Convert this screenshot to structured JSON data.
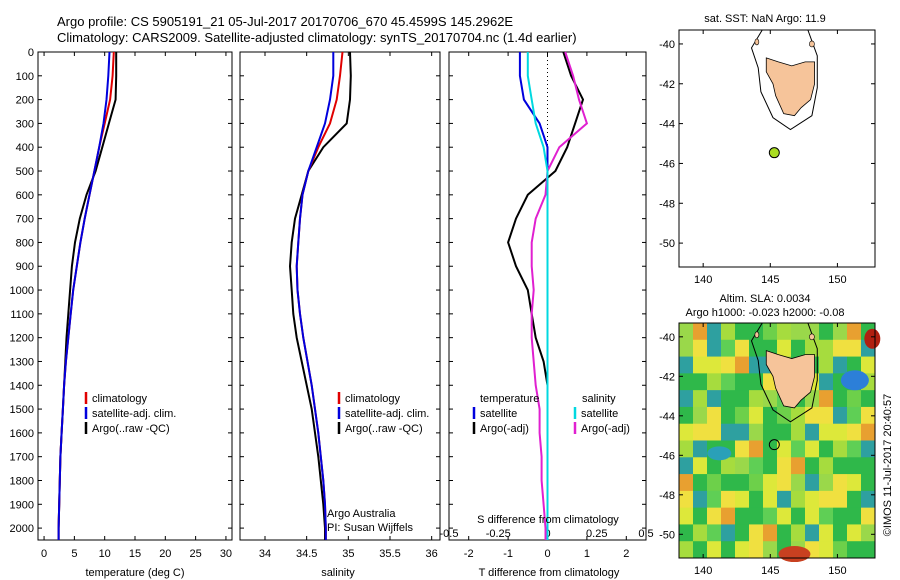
{
  "header": {
    "line1": "Argo profile: CS 5905191_21 05-Jul-2017 20170706_670 45.4599S 145.2962E",
    "line2": "Climatology: CARS2009. Satellite-adjusted climatology: synTS_20170704.nc (1.4d earlier)"
  },
  "colors": {
    "climatology": "#e00000",
    "satellite": "#0000dd",
    "argo": "#000000",
    "sat_cyan": "#00d8e0",
    "argo_magenta": "#e020d0",
    "land": "#f6c49a",
    "buoy": "#aadd22"
  },
  "depth_ticks": [
    0,
    100,
    200,
    300,
    400,
    500,
    600,
    700,
    800,
    900,
    1000,
    1100,
    1200,
    1300,
    1400,
    1500,
    1600,
    1700,
    1800,
    1900,
    2000
  ],
  "panels": {
    "temperature": {
      "xlabel": "temperature (deg C)",
      "xlim": [
        -1,
        31
      ],
      "xticks": [
        0,
        5,
        10,
        15,
        20,
        25,
        30
      ],
      "legend": [
        "climatology",
        "satellite-adj. clim.",
        "Argo(..raw -QC)"
      ]
    },
    "salinity": {
      "xlabel": "salinity",
      "xlim": [
        33.7,
        36.1
      ],
      "xticks": [
        34,
        34.5,
        35,
        35.5,
        36
      ],
      "legend": [
        "climatology",
        "satellite-adj. clim.",
        "Argo(..raw -QC)"
      ],
      "annotation1": "Argo Australia",
      "annotation2": "PI: Susan Wijffels"
    },
    "difference": {
      "xlabel": "T difference from climatology",
      "top_label": "S difference from climatology",
      "xlim": [
        -2.5,
        2.5
      ],
      "xticks": [
        -2,
        -1,
        0,
        1,
        2
      ],
      "s_ticks": [
        "-0.5",
        "-0.25",
        "0",
        "0.25",
        "0.5"
      ],
      "legend_temp_title": "temperature",
      "legend_sal_title": "salinity",
      "legend_temp": [
        "satellite",
        "Argo(-adj)"
      ],
      "legend_sal": [
        "satellite",
        "Argo(-adj)"
      ]
    }
  },
  "maps": {
    "top_title": "sat. SST: NaN Argo: 11.9",
    "bottom_title1": "Altim. SLA: 0.0034",
    "bottom_title2": "Argo h1000: -0.023 h2000: -0.08",
    "lat_ticks": [
      -40,
      -42,
      -44,
      -46,
      -48,
      -50
    ],
    "lon_ticks": [
      140,
      145,
      150
    ],
    "buoy": {
      "lon": 145.3,
      "lat": -45.46
    },
    "copyright": "©IMOS 11-Jul-2017 20:40:57"
  },
  "chart_data": [
    {
      "type": "line",
      "title": "",
      "xlabel": "temperature (deg C)",
      "ylabel": "",
      "xlim": [
        -1,
        31
      ],
      "ylim": [
        2050,
        0
      ],
      "y_depth": [
        0,
        100,
        200,
        300,
        400,
        500,
        600,
        700,
        800,
        900,
        1000,
        1100,
        1200,
        1300,
        1400,
        1500,
        1600,
        1700,
        1800,
        1900,
        2000,
        2050
      ],
      "series": [
        {
          "name": "climatology",
          "values": [
            11.5,
            11.3,
            10.9,
            10.0,
            9.1,
            8.3,
            7.5,
            6.7,
            6.0,
            5.4,
            4.8,
            4.4,
            4.0,
            3.6,
            3.3,
            3.1,
            2.9,
            2.7,
            2.6,
            2.5,
            2.4,
            2.4
          ]
        },
        {
          "name": "satellite-adj. clim.",
          "values": [
            10.8,
            10.6,
            10.3,
            9.8,
            9.1,
            8.3,
            7.5,
            6.7,
            6.0,
            5.4,
            4.8,
            4.4,
            4.0,
            3.6,
            3.3,
            3.1,
            2.9,
            2.7,
            2.6,
            2.5,
            2.4,
            2.4
          ]
        },
        {
          "name": "Argo(..raw -QC)",
          "values": [
            11.9,
            11.9,
            11.8,
            10.7,
            9.6,
            8.5,
            7.0,
            5.9,
            5.1,
            4.6,
            4.3,
            4.0,
            3.7,
            3.5,
            3.3,
            3.1,
            2.9,
            2.7,
            2.6,
            2.5,
            2.4,
            2.4
          ]
        }
      ]
    },
    {
      "type": "line",
      "title": "",
      "xlabel": "salinity",
      "ylabel": "",
      "xlim": [
        33.7,
        36.1
      ],
      "ylim": [
        2050,
        0
      ],
      "y_depth": [
        0,
        100,
        200,
        300,
        400,
        500,
        600,
        700,
        800,
        900,
        1000,
        1100,
        1200,
        1300,
        1400,
        1500,
        1600,
        1700,
        1800,
        1900,
        2000,
        2050
      ],
      "series": [
        {
          "name": "climatology",
          "values": [
            34.93,
            34.9,
            34.86,
            34.78,
            34.64,
            34.52,
            34.45,
            34.42,
            34.4,
            34.38,
            34.39,
            34.42,
            34.46,
            34.51,
            34.56,
            34.6,
            34.64,
            34.67,
            34.7,
            34.72,
            34.73,
            34.73
          ]
        },
        {
          "name": "satellite-adj. clim.",
          "values": [
            34.82,
            34.82,
            34.78,
            34.72,
            34.62,
            34.52,
            34.45,
            34.42,
            34.4,
            34.38,
            34.39,
            34.42,
            34.46,
            34.51,
            34.56,
            34.6,
            34.64,
            34.67,
            34.7,
            34.72,
            34.73,
            34.73
          ]
        },
        {
          "name": "Argo(..raw -QC)",
          "values": [
            35.02,
            35.03,
            35.02,
            34.98,
            34.7,
            34.52,
            34.44,
            34.36,
            34.32,
            34.3,
            34.32,
            34.34,
            34.38,
            34.44,
            34.5,
            34.56,
            34.6,
            34.64,
            34.67,
            34.7,
            34.72,
            34.72
          ]
        }
      ]
    },
    {
      "type": "line",
      "title": "",
      "xlabel": "T difference from climatology",
      "ylabel": "",
      "xlim": [
        -2.5,
        2.5
      ],
      "ylim": [
        2050,
        0
      ],
      "y_depth": [
        0,
        100,
        200,
        300,
        400,
        500,
        600,
        700,
        800,
        900,
        1000,
        1100,
        1200,
        1300,
        1400,
        1500,
        1600,
        1700,
        1800,
        1900,
        2000,
        2050
      ],
      "series": [
        {
          "name": "temperature satellite",
          "values": [
            -0.7,
            -0.7,
            -0.6,
            -0.2,
            0.0,
            0.0,
            0.0,
            0.0,
            0.0,
            0.0,
            0.0,
            0.0,
            0.0,
            0.0,
            0.0,
            0.0,
            0.0,
            0.0,
            0.0,
            0.0,
            0.0,
            0.0
          ]
        },
        {
          "name": "temperature Argo(-adj)",
          "values": [
            0.4,
            0.6,
            0.9,
            0.7,
            0.5,
            0.2,
            -0.5,
            -0.8,
            -1.0,
            -0.8,
            -0.5,
            -0.4,
            -0.3,
            -0.1,
            0.0,
            0.0,
            0.0,
            0.0,
            0.0,
            0.0,
            0.0,
            0.0
          ]
        },
        {
          "name": "salinity satellite",
          "values": [
            -0.1,
            -0.1,
            -0.08,
            -0.06,
            -0.02,
            0.0,
            0.0,
            0.0,
            0.0,
            0.0,
            0.0,
            0.0,
            0.0,
            0.0,
            0.0,
            0.0,
            0.0,
            0.0,
            0.0,
            0.0,
            0.0,
            0.0
          ]
        },
        {
          "name": "salinity Argo(-adj)",
          "values": [
            0.09,
            0.13,
            0.16,
            0.2,
            0.06,
            0.0,
            -0.01,
            -0.06,
            -0.08,
            -0.08,
            -0.07,
            -0.08,
            -0.08,
            -0.07,
            -0.06,
            -0.04,
            -0.04,
            -0.03,
            -0.03,
            -0.02,
            -0.01,
            -0.01
          ]
        }
      ]
    }
  ]
}
